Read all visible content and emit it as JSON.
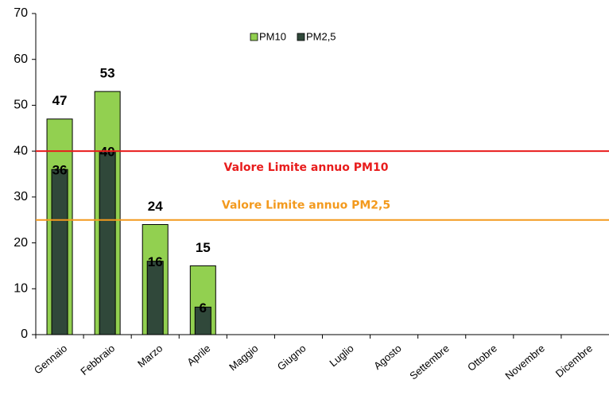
{
  "chart_data": {
    "type": "bar",
    "categories": [
      "Gennaio",
      "Febbraio",
      "Marzo",
      "Aprile",
      "Maggio",
      "Giugno",
      "Luglio",
      "Agosto",
      "Settembre",
      "Ottobre",
      "Novembre",
      "Dicembre"
    ],
    "series": [
      {
        "name": "PM10",
        "color": "#92d050",
        "values": [
          47,
          53,
          24,
          15,
          null,
          null,
          null,
          null,
          null,
          null,
          null,
          null
        ]
      },
      {
        "name": "PM2,5",
        "color": "#30483a",
        "values": [
          36,
          40,
          16,
          6,
          null,
          null,
          null,
          null,
          null,
          null,
          null,
          null
        ]
      }
    ],
    "ylim": [
      0,
      70
    ],
    "yticks": [
      0,
      10,
      20,
      30,
      40,
      50,
      60,
      70
    ],
    "grid": false,
    "legend": "top",
    "reference_lines": [
      {
        "value": 40,
        "label": "Valore Limite annuo PM10",
        "color": "#e81c1c"
      },
      {
        "value": 25,
        "label": "Valore Limite annuo PM2,5",
        "color": "#f39a1e"
      }
    ]
  }
}
